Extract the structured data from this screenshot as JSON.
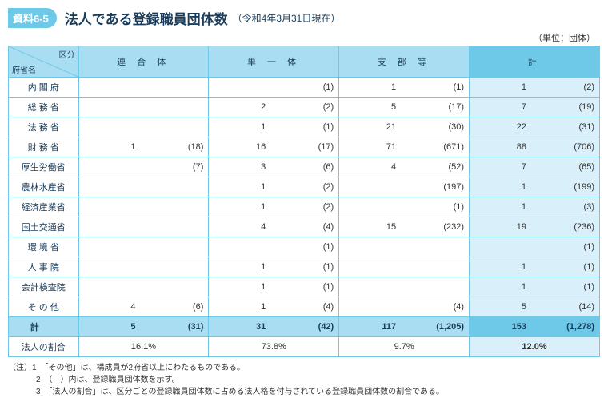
{
  "header": {
    "tag": "資料6-5",
    "title": "法人である登録職員団体数",
    "subtitle": "（令和4年3月31日現在）",
    "unit": "（単位：団体）"
  },
  "table": {
    "corner_top": "区分",
    "corner_bottom": "府省名",
    "columns": [
      "連 合 体",
      "単 一 体",
      "支 部 等",
      "計"
    ],
    "rows": [
      {
        "name": "内 閣 府",
        "spaced": false,
        "cells": [
          [
            "",
            ""
          ],
          [
            "",
            "(1)"
          ],
          [
            "1",
            "(1)"
          ],
          [
            "1",
            "(2)"
          ]
        ]
      },
      {
        "name": "総 務 省",
        "spaced": false,
        "cells": [
          [
            "",
            ""
          ],
          [
            "2",
            "(2)"
          ],
          [
            "5",
            "(17)"
          ],
          [
            "7",
            "(19)"
          ]
        ]
      },
      {
        "name": "法 務 省",
        "spaced": false,
        "cells": [
          [
            "",
            ""
          ],
          [
            "1",
            "(1)"
          ],
          [
            "21",
            "(30)"
          ],
          [
            "22",
            "(31)"
          ]
        ]
      },
      {
        "name": "財 務 省",
        "spaced": false,
        "cells": [
          [
            "1",
            "(18)"
          ],
          [
            "16",
            "(17)"
          ],
          [
            "71",
            "(671)"
          ],
          [
            "88",
            "(706)"
          ]
        ]
      },
      {
        "name": "厚生労働省",
        "spaced": false,
        "cells": [
          [
            "",
            "(7)"
          ],
          [
            "3",
            "(6)"
          ],
          [
            "4",
            "(52)"
          ],
          [
            "7",
            "(65)"
          ]
        ]
      },
      {
        "name": "農林水産省",
        "spaced": false,
        "cells": [
          [
            "",
            ""
          ],
          [
            "1",
            "(2)"
          ],
          [
            "",
            "(197)"
          ],
          [
            "1",
            "(199)"
          ]
        ]
      },
      {
        "name": "経済産業省",
        "spaced": false,
        "cells": [
          [
            "",
            ""
          ],
          [
            "1",
            "(2)"
          ],
          [
            "",
            "(1)"
          ],
          [
            "1",
            "(3)"
          ]
        ]
      },
      {
        "name": "国土交通省",
        "spaced": false,
        "cells": [
          [
            "",
            ""
          ],
          [
            "4",
            "(4)"
          ],
          [
            "15",
            "(232)"
          ],
          [
            "19",
            "(236)"
          ]
        ]
      },
      {
        "name": "環 境 省",
        "spaced": false,
        "cells": [
          [
            "",
            ""
          ],
          [
            "",
            "(1)"
          ],
          [
            "",
            ""
          ],
          [
            "",
            "(1)"
          ]
        ]
      },
      {
        "name": "人 事 院",
        "spaced": false,
        "cells": [
          [
            "",
            ""
          ],
          [
            "1",
            "(1)"
          ],
          [
            "",
            ""
          ],
          [
            "1",
            "(1)"
          ]
        ]
      },
      {
        "name": "会計検査院",
        "spaced": false,
        "cells": [
          [
            "",
            ""
          ],
          [
            "1",
            "(1)"
          ],
          [
            "",
            ""
          ],
          [
            "1",
            "(1)"
          ]
        ]
      },
      {
        "name": "そ の 他",
        "spaced": false,
        "cells": [
          [
            "4",
            "(6)"
          ],
          [
            "1",
            "(4)"
          ],
          [
            "",
            "(4)"
          ],
          [
            "5",
            "(14)"
          ]
        ]
      }
    ],
    "total": {
      "name": "計",
      "cells": [
        [
          "5",
          "(31)"
        ],
        [
          "31",
          "(42)"
        ],
        [
          "117",
          "(1,205)"
        ],
        [
          "153",
          "(1,278)"
        ]
      ]
    },
    "ratio": {
      "name": "法人の割合",
      "cells": [
        "16.1%",
        "73.8%",
        "9.7%",
        "12.0%"
      ]
    }
  },
  "notes": {
    "lead": "（注）",
    "items": [
      "1　「その他」は、構成員が2府省以上にわたるものである。",
      "2　（　）内は、登録職員団体数を示す。",
      "3　「法人の割合」は、区分ごとの登録職員団体数に占める法人格を付与されている登録職員団体数の割合である。"
    ]
  },
  "style": {
    "border_color": "#6ec8e8",
    "header_bg": "#a9def2",
    "total_bg": "#6ec8e8",
    "total_cell_light": "#d9f0fa"
  }
}
